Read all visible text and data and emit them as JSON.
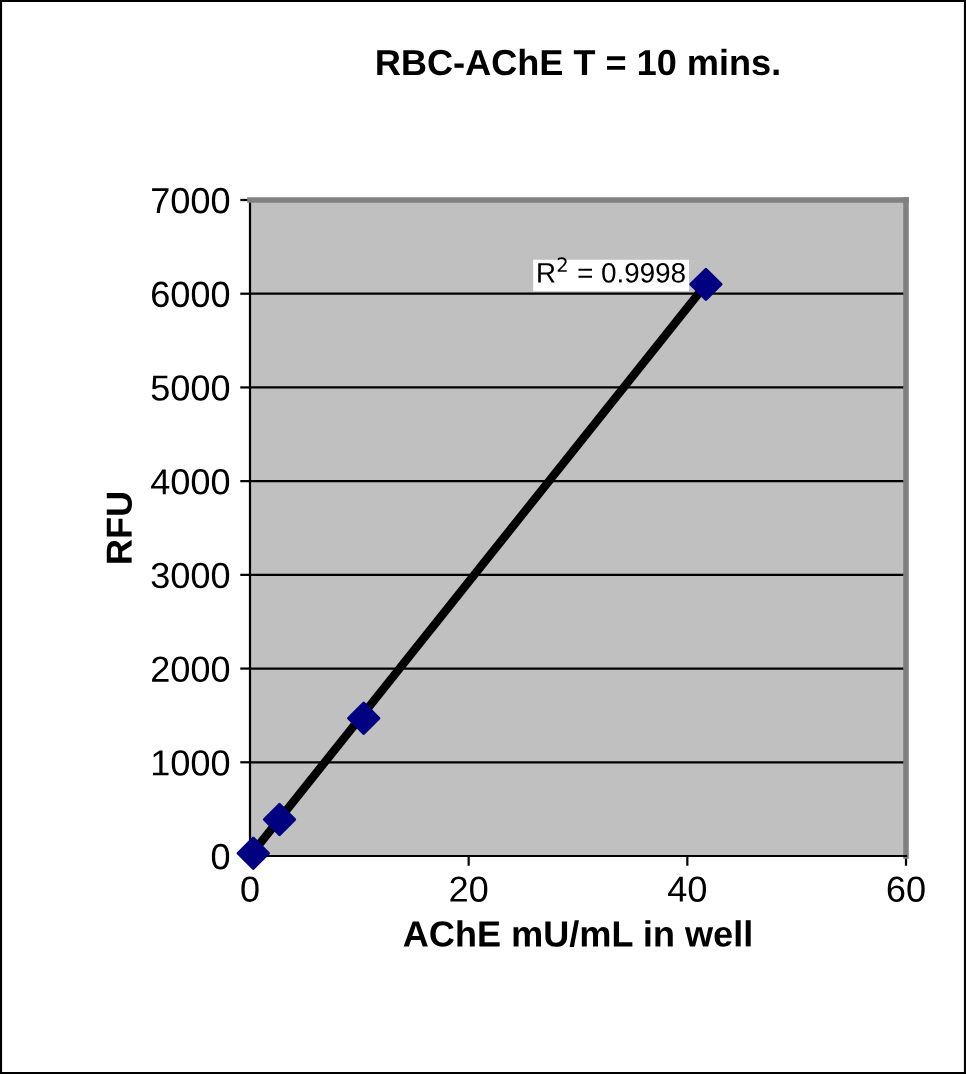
{
  "chart_data": {
    "type": "scatter",
    "title": "RBC-AChE T = 10 mins.",
    "xlabel": "AChE mU/mL in well",
    "ylabel": "RFU",
    "annotations": [
      "R$^{2}$ = 0.9998"
    ],
    "series": [
      {
        "color": "#000080",
        "marker": "diamond",
        "x": [
          0.3,
          2.7,
          10.4,
          41.7
        ],
        "values": [
          30,
          390,
          1470,
          6100
        ]
      },
      {
        "type": "line",
        "color": "#000000",
        "line_style": "solid",
        "marker": "none",
        "x": [
          0,
          41.7
        ],
        "values": [
          0,
          6100
        ]
      }
    ],
    "xlim": [
      0,
      60
    ],
    "xticks": [
      0,
      20,
      40,
      60
    ],
    "ylim": [
      0,
      7000
    ],
    "yticks": [
      0,
      1000,
      2000,
      3000,
      4000,
      5000,
      6000,
      7000
    ],
    "grid": "y",
    "legend": false
  }
}
